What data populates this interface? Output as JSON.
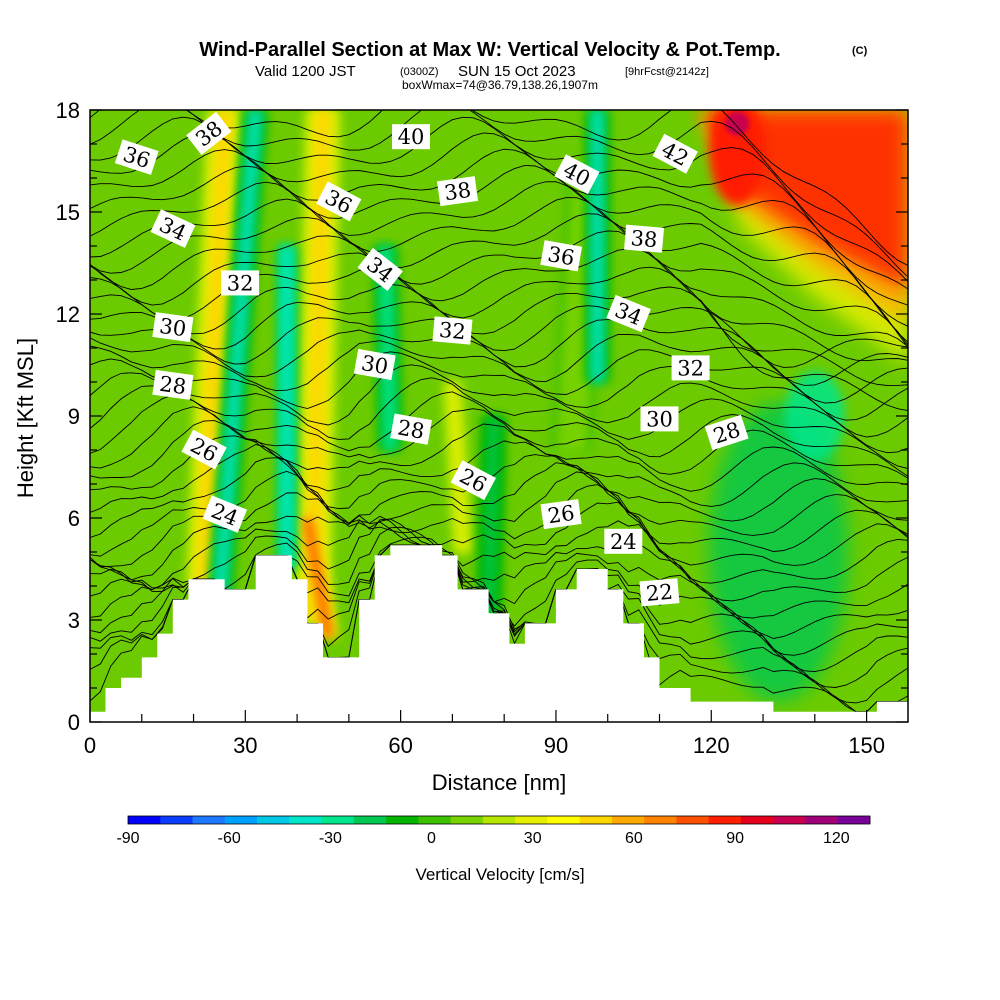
{
  "colors": {
    "contour": "#000000",
    "terrain": "#ffffff",
    "frame": "#000000"
  },
  "chart_data": {
    "type": "heatmap",
    "title": "Wind-Parallel Section at Max W: Vertical Velocity & Pot.Temp.",
    "title_mark": "(C)",
    "subtitle_valid": "Valid 1200 JST",
    "subtitle_utc": "(0300Z)",
    "subtitle_date": "SUN 15 Oct 2023",
    "subtitle_fcst": "[9hrFcst@2142z]",
    "subtitle_box": "boxWmax=74@36.79,138.26,1907m",
    "xlabel": "Distance [nm]",
    "ylabel": "Height [Kft MSL]",
    "xlim": [
      0,
      158
    ],
    "ylim": [
      0,
      18
    ],
    "x_ticks": [
      "0",
      "30",
      "60",
      "90",
      "120",
      "150"
    ],
    "y_ticks": [
      "0",
      "3",
      "6",
      "9",
      "12",
      "15",
      "18"
    ],
    "x_tick_values": [
      0,
      30,
      60,
      90,
      120,
      150
    ],
    "y_tick_values": [
      0,
      3,
      6,
      9,
      12,
      15,
      18
    ],
    "colorbar": {
      "label": "Vertical Velocity [cm/s]",
      "tick_labels": [
        "-90",
        "-60",
        "-30",
        "0",
        "30",
        "60",
        "90",
        "120"
      ],
      "tick_values": [
        -90,
        -60,
        -30,
        0,
        30,
        60,
        90,
        120
      ],
      "min": -90,
      "max": 130,
      "colors": [
        "#0000ff",
        "#0a3cff",
        "#1e78ff",
        "#00a0ff",
        "#00c8e6",
        "#00e6c8",
        "#00e68c",
        "#00c850",
        "#00b400",
        "#3cc000",
        "#78d200",
        "#b4e600",
        "#e6f000",
        "#ffff00",
        "#ffd700",
        "#ffaa00",
        "#ff8200",
        "#ff5000",
        "#ff1e00",
        "#e6001e",
        "#c80050",
        "#a00078",
        "#780096"
      ]
    },
    "terrain": [
      [
        0,
        0.3
      ],
      [
        3,
        0.3
      ],
      [
        3,
        1.0
      ],
      [
        6,
        1.0
      ],
      [
        6,
        1.3
      ],
      [
        10,
        1.3
      ],
      [
        10,
        1.9
      ],
      [
        13,
        1.9
      ],
      [
        13,
        2.6
      ],
      [
        16,
        2.6
      ],
      [
        16,
        3.6
      ],
      [
        19,
        3.6
      ],
      [
        19,
        4.2
      ],
      [
        26,
        4.2
      ],
      [
        26,
        3.9
      ],
      [
        32,
        3.9
      ],
      [
        32,
        4.9
      ],
      [
        39,
        4.9
      ],
      [
        39,
        4.2
      ],
      [
        42,
        4.2
      ],
      [
        42,
        2.9
      ],
      [
        45,
        2.9
      ],
      [
        45,
        1.9
      ],
      [
        52,
        1.9
      ],
      [
        52,
        3.6
      ],
      [
        55,
        3.6
      ],
      [
        55,
        4.9
      ],
      [
        58,
        4.9
      ],
      [
        58,
        5.2
      ],
      [
        68,
        5.2
      ],
      [
        68,
        4.9
      ],
      [
        71,
        4.9
      ],
      [
        71,
        3.9
      ],
      [
        77,
        3.9
      ],
      [
        77,
        3.2
      ],
      [
        81,
        3.2
      ],
      [
        81,
        2.3
      ],
      [
        84,
        2.3
      ],
      [
        84,
        2.9
      ],
      [
        90,
        2.9
      ],
      [
        90,
        3.9
      ],
      [
        94,
        3.9
      ],
      [
        94,
        4.5
      ],
      [
        100,
        4.5
      ],
      [
        100,
        3.9
      ],
      [
        103,
        3.9
      ],
      [
        103,
        2.9
      ],
      [
        107,
        2.9
      ],
      [
        107,
        1.9
      ],
      [
        110,
        1.9
      ],
      [
        110,
        1.0
      ],
      [
        116,
        1.0
      ],
      [
        116,
        0.6
      ],
      [
        132,
        0.6
      ],
      [
        132,
        0.3
      ],
      [
        152,
        0.3
      ],
      [
        152,
        0.6
      ],
      [
        158,
        0.6
      ]
    ],
    "updraft_bands": [
      {
        "x_top": 26,
        "x_bottom": 22,
        "width": 4.5,
        "w": 45,
        "z_min": 4,
        "z_max": 18
      },
      {
        "x_top": 45,
        "x_bottom": 43,
        "width": 4.5,
        "w": 45,
        "z_min": 3,
        "z_max": 18
      },
      {
        "x_top": 42,
        "x_bottom": 46,
        "width": 2.5,
        "w": 80,
        "z_min": 2.5,
        "z_max": 6
      },
      {
        "x_top": 70,
        "x_bottom": 72,
        "width": 3,
        "w": 25,
        "z_min": 5,
        "z_max": 10
      },
      {
        "x_top": 96,
        "x_bottom": 93,
        "width": 5,
        "w": 15,
        "z_min": 8,
        "z_max": 16
      }
    ],
    "downdraft_bands": [
      {
        "x_top": 32,
        "x_bottom": 25,
        "width": 3,
        "w": -35,
        "z_min": 3.5,
        "z_max": 18
      },
      {
        "x_top": 38,
        "x_bottom": 38,
        "width": 2.5,
        "w": -40,
        "z_min": 4.5,
        "z_max": 14
      },
      {
        "x_top": 57,
        "x_bottom": 58,
        "width": 3,
        "w": -25,
        "z_min": 8,
        "z_max": 14
      },
      {
        "x_top": 98,
        "x_bottom": 98,
        "width": 3,
        "w": -35,
        "z_min": 10,
        "z_max": 18
      },
      {
        "x_top": 78,
        "x_bottom": 77,
        "width": 3,
        "w": -15,
        "z_min": 3,
        "z_max": 9
      }
    ],
    "hotspot": {
      "x": 125,
      "z": 17.6,
      "w": 110
    },
    "potential_temperature_labels": [
      {
        "text": "36",
        "x": 9,
        "z": 16.6,
        "angle": 18
      },
      {
        "text": "38",
        "x": 23,
        "z": 17.3,
        "angle": -38
      },
      {
        "text": "34",
        "x": 16,
        "z": 14.5,
        "angle": 25
      },
      {
        "text": "32",
        "x": 29,
        "z": 12.9,
        "angle": 0
      },
      {
        "text": "30",
        "x": 16,
        "z": 11.6,
        "angle": 8
      },
      {
        "text": "28",
        "x": 16,
        "z": 9.9,
        "angle": 8
      },
      {
        "text": "26",
        "x": 22,
        "z": 8.0,
        "angle": 28
      },
      {
        "text": "24",
        "x": 26,
        "z": 6.1,
        "angle": 22
      },
      {
        "text": "36",
        "x": 48,
        "z": 15.3,
        "angle": 28
      },
      {
        "text": "34",
        "x": 56,
        "z": 13.3,
        "angle": 38
      },
      {
        "text": "30",
        "x": 55,
        "z": 10.5,
        "angle": 10
      },
      {
        "text": "28",
        "x": 62,
        "z": 8.6,
        "angle": 10
      },
      {
        "text": "40",
        "x": 62,
        "z": 17.2,
        "angle": 0
      },
      {
        "text": "38",
        "x": 71,
        "z": 15.6,
        "angle": -8
      },
      {
        "text": "32",
        "x": 70,
        "z": 11.5,
        "angle": 5
      },
      {
        "text": "26",
        "x": 74,
        "z": 7.1,
        "angle": 28
      },
      {
        "text": "40",
        "x": 94,
        "z": 16.1,
        "angle": 28
      },
      {
        "text": "36",
        "x": 91,
        "z": 13.7,
        "angle": 10
      },
      {
        "text": "26",
        "x": 91,
        "z": 6.1,
        "angle": -8
      },
      {
        "text": "42",
        "x": 113,
        "z": 16.7,
        "angle": 28
      },
      {
        "text": "38",
        "x": 107,
        "z": 14.2,
        "angle": 5
      },
      {
        "text": "34",
        "x": 104,
        "z": 12.0,
        "angle": 22
      },
      {
        "text": "32",
        "x": 116,
        "z": 10.4,
        "angle": 0
      },
      {
        "text": "30",
        "x": 110,
        "z": 8.9,
        "angle": 0
      },
      {
        "text": "28",
        "x": 123,
        "z": 8.5,
        "angle": -18
      },
      {
        "text": "24",
        "x": 103,
        "z": 5.3,
        "angle": 0
      },
      {
        "text": "22",
        "x": 110,
        "z": 3.8,
        "angle": -5
      }
    ]
  }
}
